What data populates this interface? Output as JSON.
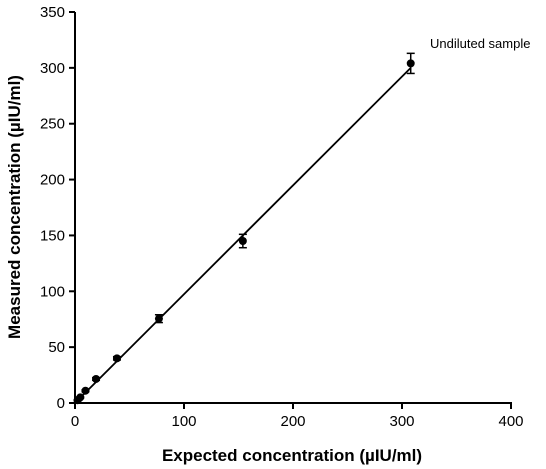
{
  "chart_data": {
    "type": "scatter",
    "xlabel": "Expected concentration (µIU/ml)",
    "ylabel": "Measured concentration (µIU/ml)",
    "xlim": [
      0,
      400
    ],
    "ylim": [
      0,
      350
    ],
    "x_ticks": [
      0,
      100,
      200,
      300,
      400
    ],
    "y_ticks": [
      0,
      50,
      100,
      150,
      200,
      250,
      300,
      350
    ],
    "grid": false,
    "points": [
      {
        "x": 2.4,
        "y": 2.5,
        "err": 0.5
      },
      {
        "x": 4.8,
        "y": 5,
        "err": 0.6
      },
      {
        "x": 9.6,
        "y": 11,
        "err": 0.8
      },
      {
        "x": 19.3,
        "y": 21.5,
        "err": 1.2
      },
      {
        "x": 38.5,
        "y": 40,
        "err": 1.5
      },
      {
        "x": 77,
        "y": 75.5,
        "err": 3.5
      },
      {
        "x": 154,
        "y": 145,
        "err": 6
      },
      {
        "x": 308,
        "y": 304,
        "err": 9
      }
    ],
    "fit_line": {
      "x": [
        0,
        308
      ],
      "y": [
        0,
        300
      ]
    },
    "annotation": "Undiluted sample",
    "colors": {
      "marker": "#000000",
      "line": "#000000",
      "axis": "#000000"
    }
  }
}
